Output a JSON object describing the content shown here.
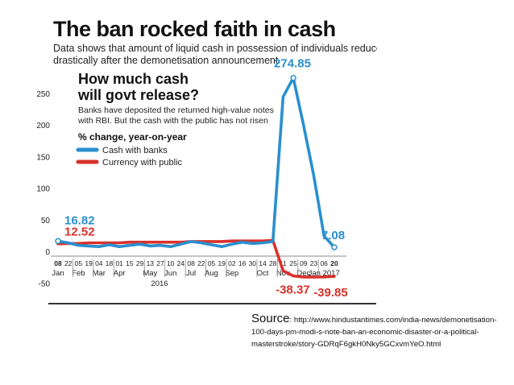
{
  "chart_data": {
    "type": "line",
    "title": "The ban rocked faith in cash",
    "subtitle": "Data shows that amount of liquid cash in possession of individuals reduced drastically after the demonetisation announcement",
    "headline": "How much cash will govt release?",
    "note": "Banks have deposited the returned high-value notes with RBI. But the cash with the public has not risen",
    "legend_title": "% change, year-on-year",
    "legend_position": "top-left",
    "ylim": [
      -50,
      275
    ],
    "yticks": [
      250,
      200,
      150,
      100,
      50,
      0,
      -50
    ],
    "grid": false,
    "year_label": "2016",
    "x_ticks": [
      {
        "day": "08",
        "month": "Jan"
      },
      {
        "day": "22",
        "month": ""
      },
      {
        "day": "05",
        "month": "Feb"
      },
      {
        "day": "19",
        "month": ""
      },
      {
        "day": "04",
        "month": "Mar"
      },
      {
        "day": "18",
        "month": ""
      },
      {
        "day": "01",
        "month": "Apr"
      },
      {
        "day": "15",
        "month": ""
      },
      {
        "day": "29",
        "month": ""
      },
      {
        "day": "13",
        "month": "May"
      },
      {
        "day": "27",
        "month": ""
      },
      {
        "day": "10",
        "month": "Jun"
      },
      {
        "day": "24",
        "month": ""
      },
      {
        "day": "08",
        "month": "Jul"
      },
      {
        "day": "22",
        "month": ""
      },
      {
        "day": "05",
        "month": "Aug"
      },
      {
        "day": "19",
        "month": ""
      },
      {
        "day": "02",
        "month": "Sep"
      },
      {
        "day": "16",
        "month": ""
      },
      {
        "day": "30",
        "month": ""
      },
      {
        "day": "14",
        "month": "Oct"
      },
      {
        "day": "28",
        "month": ""
      },
      {
        "day": "11",
        "month": "Nov"
      },
      {
        "day": "25",
        "month": ""
      },
      {
        "day": "09",
        "month": "Dec"
      },
      {
        "day": "23",
        "month": ""
      },
      {
        "day": "06",
        "month": "Jan 2017"
      },
      {
        "day": "20",
        "month": ""
      }
    ],
    "series": [
      {
        "name": "Cash with banks",
        "color": "#2a8fce",
        "values": [
          16.82,
          14,
          10,
          9,
          8,
          11,
          8,
          10,
          12,
          9,
          10,
          8,
          12,
          16,
          14,
          11,
          8,
          12,
          15,
          13,
          14,
          16,
          245,
          274.85,
          200,
          120,
          25,
          7.08
        ]
      },
      {
        "name": "Currency with public",
        "color": "#d8322b",
        "values": [
          12.52,
          13,
          13,
          14,
          14,
          14,
          14,
          15,
          15,
          15,
          15,
          15,
          15,
          16,
          16,
          16,
          16,
          17,
          17,
          17,
          17,
          18,
          -30,
          -38.37,
          -40,
          -40,
          -39.85,
          -39
        ]
      }
    ],
    "annotations": [
      {
        "text": "274.85",
        "series": 0,
        "index": 23
      },
      {
        "text": "16.82",
        "series": 0,
        "index": 0
      },
      {
        "text": "12.52",
        "series": 1,
        "index": 0
      },
      {
        "text": "7.08",
        "series": 0,
        "index": 27
      },
      {
        "text": "-38.37",
        "series": 1,
        "index": 23
      },
      {
        "text": "-39.85",
        "series": 1,
        "index": 26
      }
    ]
  },
  "source": {
    "label": "Source",
    "text": ": http://www.hindustantimes.com/india-news/demonetisation-100-days-pm-modi-s-note-ban-an-economic-disaster-or-a-political-masterstroke/story-GDRqF6gkH0Nky5GCxvmYeO.html"
  }
}
